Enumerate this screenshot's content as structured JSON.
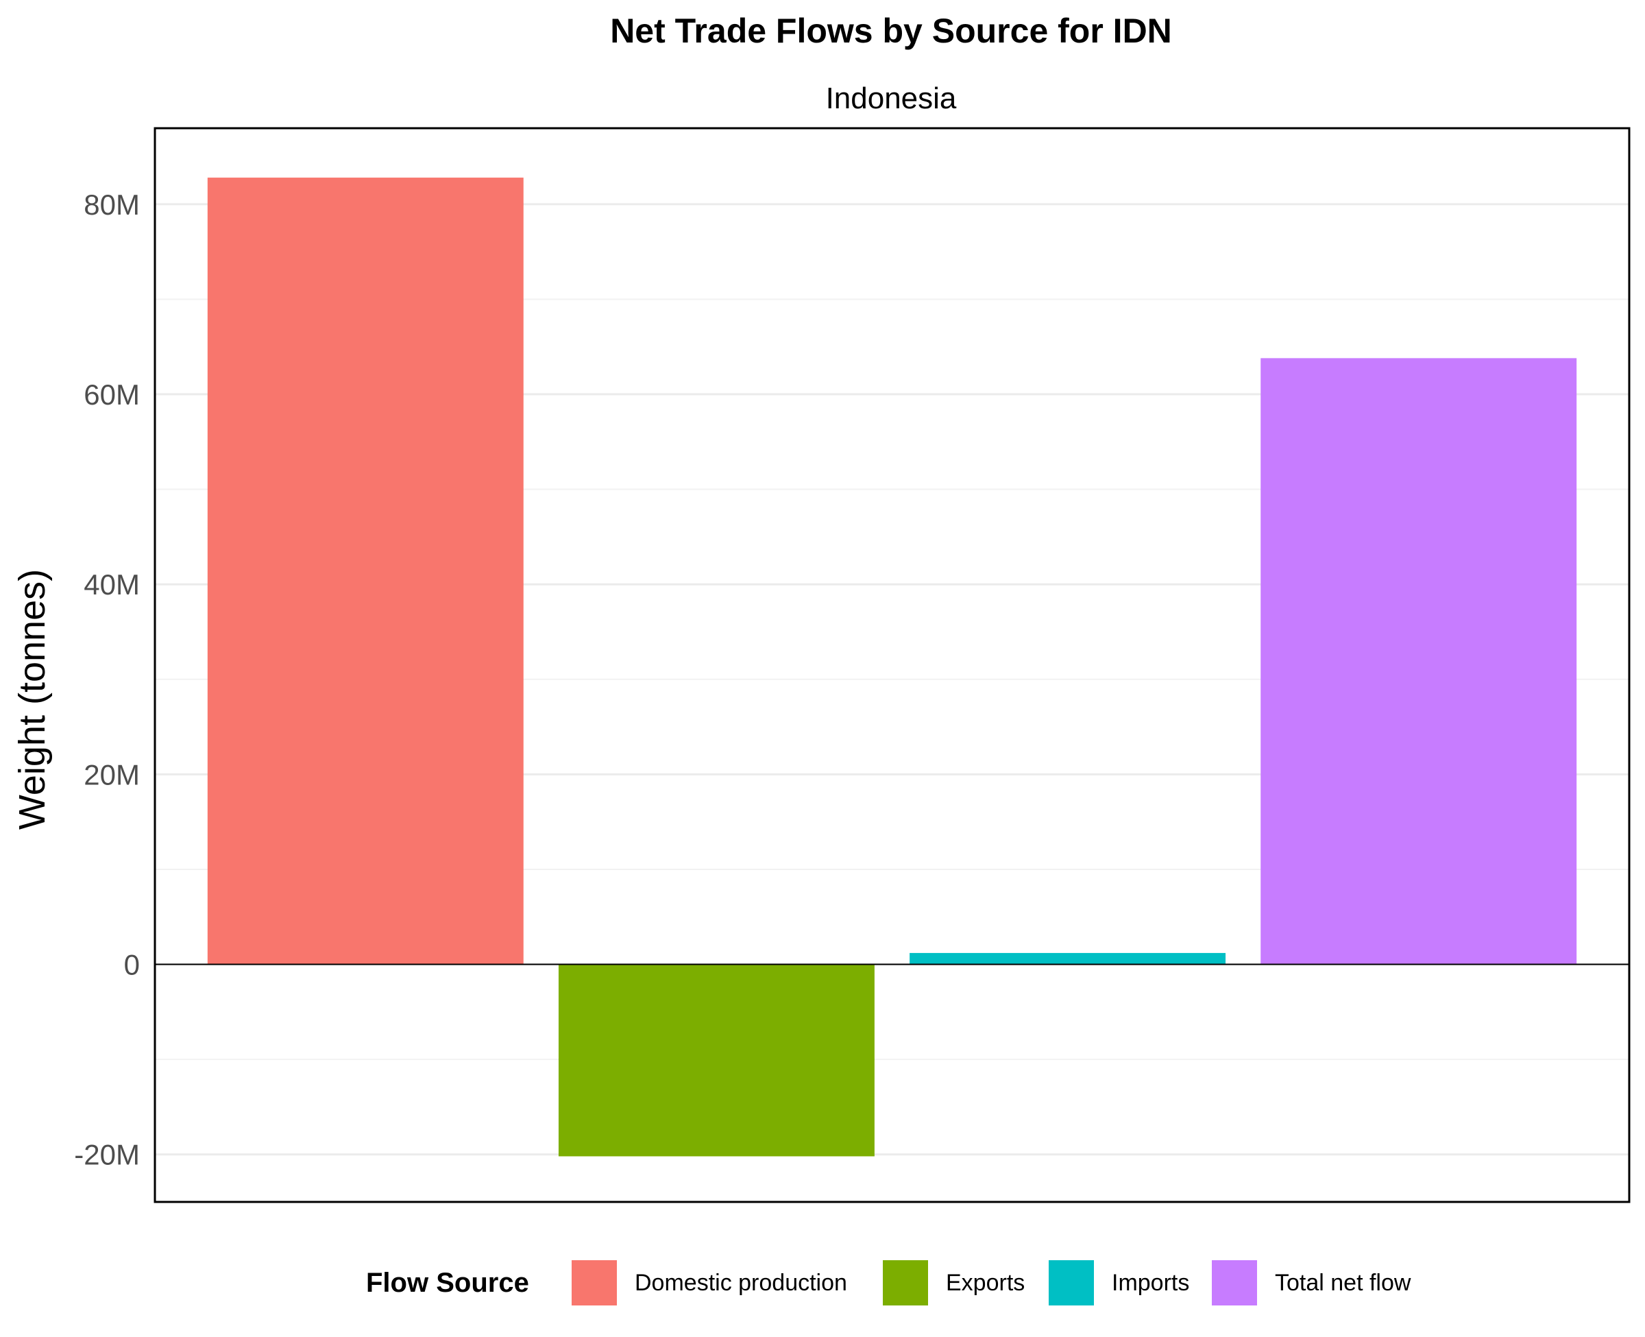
{
  "chart_data": {
    "type": "bar",
    "title": "Net Trade Flows by Source for IDN",
    "subtitle": "Indonesia",
    "xlabel": "",
    "ylabel": "Weight (tonnes)",
    "ylim": [
      -25000000,
      88000000
    ],
    "y_ticks": [
      -20000000,
      0,
      20000000,
      40000000,
      60000000,
      80000000
    ],
    "y_tick_labels": [
      "-20M",
      "0",
      "20M",
      "40M",
      "60M",
      "80M"
    ],
    "grid": true,
    "categories": [
      "Domestic production",
      "Exports",
      "Imports",
      "Total net flow"
    ],
    "values": [
      82800000,
      -20200000,
      1200000,
      63800000
    ],
    "colors": [
      "#F8766D",
      "#7CAE00",
      "#00BFC4",
      "#C77CFF"
    ],
    "legend": {
      "title": "Flow Source",
      "position": "bottom",
      "entries": [
        "Domestic production",
        "Exports",
        "Imports",
        "Total net flow"
      ]
    }
  }
}
